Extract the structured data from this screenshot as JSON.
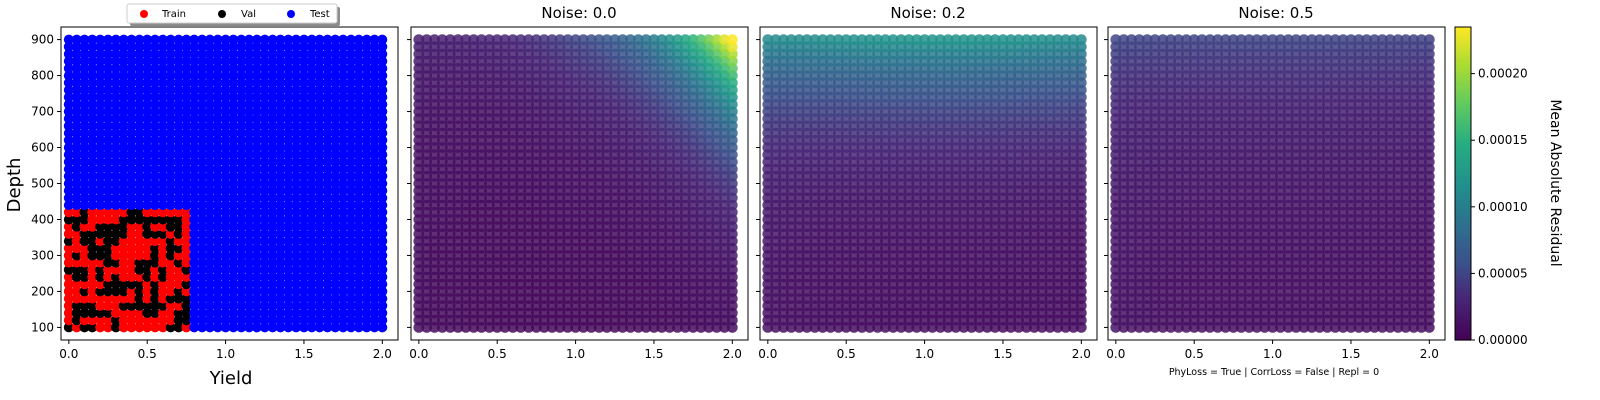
{
  "chart_data": [
    {
      "type": "scatter",
      "panel": "split",
      "title": "",
      "xlabel": "Yield",
      "ylabel": "Depth",
      "xlim": [
        -0.05,
        2.1
      ],
      "ylim": [
        65,
        935
      ],
      "xticks": [
        "0.0",
        "0.5",
        "1.0",
        "1.5",
        "2.0"
      ],
      "yticks": [
        "100",
        "200",
        "300",
        "400",
        "500",
        "600",
        "700",
        "800",
        "900"
      ],
      "legend": {
        "placement": "top-center",
        "entries": [
          {
            "label": "Train",
            "color": "#ff0000"
          },
          {
            "label": "Val",
            "color": "#000000"
          },
          {
            "label": "Test",
            "color": "#0000ff"
          }
        ]
      },
      "grid": false,
      "series": [
        {
          "name": "Test",
          "color": "#0000ff",
          "x_range": [
            0.0,
            2.0
          ],
          "y_range": [
            100,
            900
          ],
          "note": "full grid"
        },
        {
          "name": "Train",
          "color": "#ff0000",
          "x_range": [
            0.0,
            0.78
          ],
          "y_range": [
            100,
            425
          ]
        },
        {
          "name": "Val",
          "color": "#000000",
          "x_range": [
            0.0,
            0.78
          ],
          "y_range": [
            100,
            425
          ],
          "note": "scattered subset of the train region"
        }
      ]
    },
    {
      "type": "heatmap",
      "title": "Noise: 0.0",
      "xlim": [
        -0.05,
        2.1
      ],
      "ylim": [
        65,
        935
      ],
      "xticks": [
        "0.0",
        "0.5",
        "1.0",
        "1.5",
        "2.0"
      ],
      "x_range": [
        0.0,
        2.0
      ],
      "y_range": [
        100,
        900
      ],
      "value_model": {
        "base": 5e-06,
        "corner_peak": 0.000235,
        "peak_at": [
          2.0,
          900
        ],
        "decay_x": 0.45,
        "decay_y": 210
      }
    },
    {
      "type": "heatmap",
      "title": "Noise: 0.2",
      "xlim": [
        -0.05,
        2.1
      ],
      "ylim": [
        65,
        935
      ],
      "xticks": [
        "0.0",
        "0.5",
        "1.0",
        "1.5",
        "2.0"
      ],
      "x_range": [
        0.0,
        2.0
      ],
      "y_range": [
        100,
        900
      ],
      "value_model": {
        "base": 8e-06,
        "top_band_peak": 0.00012,
        "peak_at_y": 900,
        "decay_y": 200,
        "x_boost": 0.25
      }
    },
    {
      "type": "heatmap",
      "title": "Noise: 0.5",
      "xlim": [
        -0.05,
        2.1
      ],
      "ylim": [
        65,
        935
      ],
      "xticks": [
        "0.0",
        "0.5",
        "1.0",
        "1.5",
        "2.0"
      ],
      "x_range": [
        0.0,
        2.0
      ],
      "y_range": [
        100,
        900
      ],
      "value_model": {
        "base": 1e-05,
        "top_band_peak": 5e-05,
        "peak_at_y": 900,
        "decay_y": 260,
        "x_boost": 0.15
      }
    }
  ],
  "colorbar": {
    "label": "Mean Absolute Residual",
    "colormap": "viridis",
    "range": [
      0.0,
      0.000235
    ],
    "ticks": [
      "0.00000",
      "0.00005",
      "0.00010",
      "0.00015",
      "0.00020"
    ],
    "tick_values": [
      0.0,
      5e-05,
      0.0001,
      0.00015,
      0.0002
    ]
  },
  "footnote": "PhyLoss = True | CorrLoss = False | Repl = 0"
}
